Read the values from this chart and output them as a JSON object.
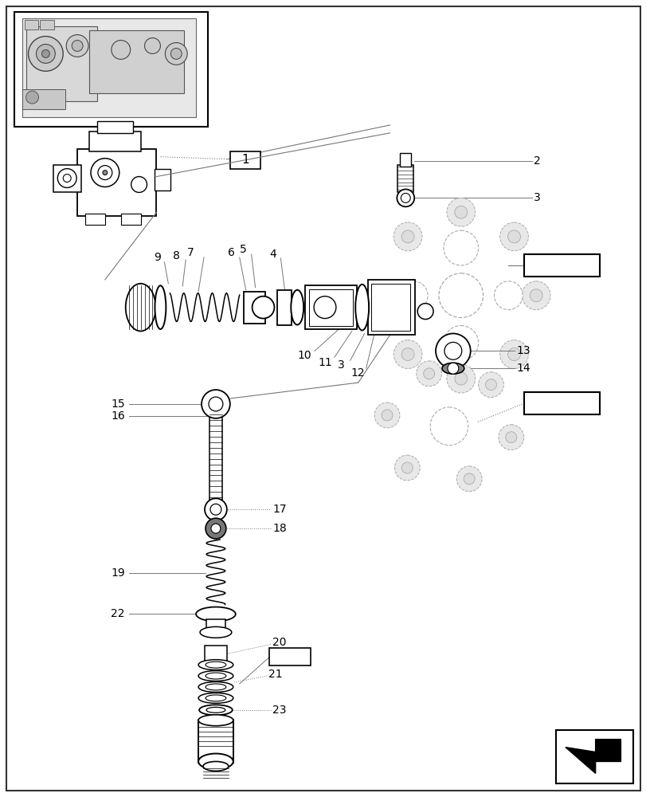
{
  "bg_color": "#ffffff",
  "line_color": "#000000",
  "light_gray": "#888888",
  "dashed_color": "#aaaaaa",
  "fig_width": 8.12,
  "fig_height": 10.0
}
